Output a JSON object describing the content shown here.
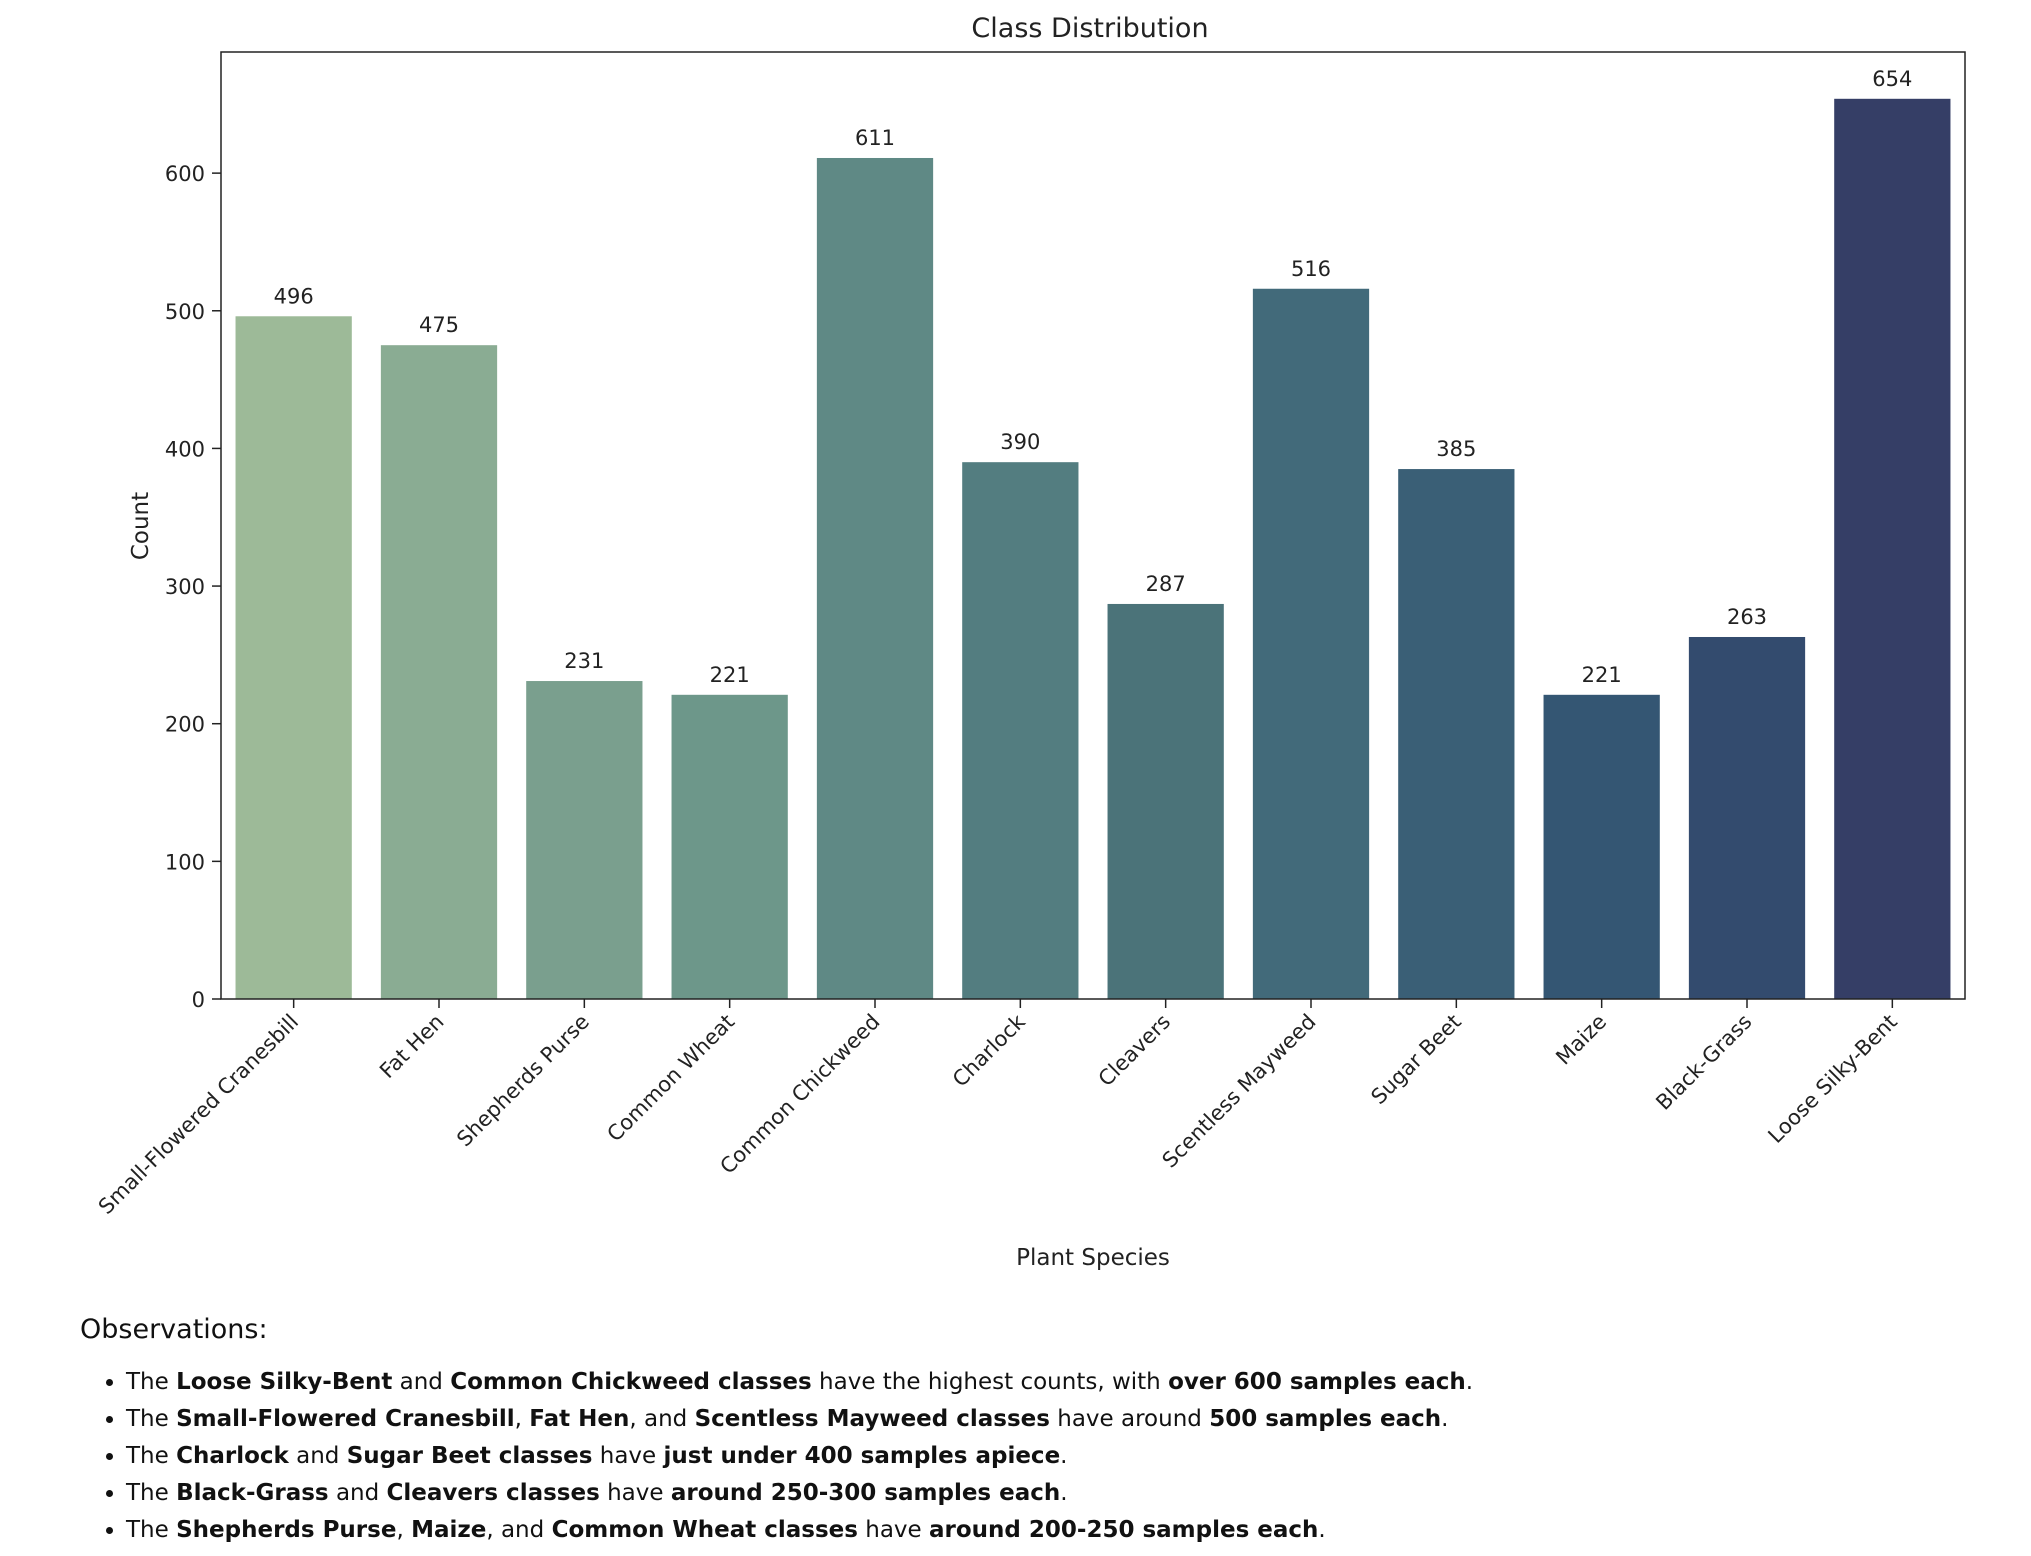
{
  "chart_data": {
    "type": "bar",
    "title": "Class Distribution",
    "xlabel": "Plant Species",
    "ylabel": "Count",
    "ylim": [
      0,
      688
    ],
    "yticks": [
      0,
      100,
      200,
      300,
      400,
      500,
      600
    ],
    "grid": false,
    "categories": [
      "Small-Flowered Cranesbill",
      "Fat Hen",
      "Shepherds Purse",
      "Common Wheat",
      "Common Chickweed",
      "Charlock",
      "Cleavers",
      "Scentless Mayweed",
      "Sugar Beet",
      "Maize",
      "Black-Grass",
      "Loose Silky-Bent"
    ],
    "values": [
      496,
      475,
      231,
      221,
      611,
      390,
      287,
      516,
      385,
      221,
      263,
      654
    ],
    "colors": [
      "#9dba98",
      "#8aac93",
      "#7a9f8e",
      "#6d978a",
      "#5f8985",
      "#537d80",
      "#4b7379",
      "#426a7a",
      "#3a5f76",
      "#345673",
      "#334b6e",
      "#353e66"
    ]
  },
  "observations": {
    "title": "Observations:",
    "items": [
      [
        {
          "t": "The "
        },
        {
          "t": "Loose Silky-Bent",
          "b": true
        },
        {
          "t": " and "
        },
        {
          "t": "Common Chickweed classes",
          "b": true
        },
        {
          "t": " have the highest counts, with "
        },
        {
          "t": "over 600 samples each",
          "b": true
        },
        {
          "t": "."
        }
      ],
      [
        {
          "t": "The "
        },
        {
          "t": "Small-Flowered Cranesbill",
          "b": true
        },
        {
          "t": ", "
        },
        {
          "t": "Fat Hen",
          "b": true
        },
        {
          "t": ", and "
        },
        {
          "t": "Scentless Mayweed classes",
          "b": true
        },
        {
          "t": " have around "
        },
        {
          "t": "500 samples each",
          "b": true
        },
        {
          "t": "."
        }
      ],
      [
        {
          "t": "The "
        },
        {
          "t": "Charlock",
          "b": true
        },
        {
          "t": " and "
        },
        {
          "t": "Sugar Beet classes",
          "b": true
        },
        {
          "t": " have "
        },
        {
          "t": "just under 400 samples apiece",
          "b": true
        },
        {
          "t": "."
        }
      ],
      [
        {
          "t": "The "
        },
        {
          "t": "Black-Grass",
          "b": true
        },
        {
          "t": " and "
        },
        {
          "t": "Cleavers classes",
          "b": true
        },
        {
          "t": " have "
        },
        {
          "t": "around 250-300 samples each",
          "b": true
        },
        {
          "t": "."
        }
      ],
      [
        {
          "t": "The "
        },
        {
          "t": "Shepherds Purse",
          "b": true
        },
        {
          "t": ", "
        },
        {
          "t": "Maize",
          "b": true
        },
        {
          "t": ", and "
        },
        {
          "t": "Common Wheat classes",
          "b": true
        },
        {
          "t": " have "
        },
        {
          "t": "around 200-250 samples each",
          "b": true
        },
        {
          "t": "."
        }
      ]
    ]
  }
}
